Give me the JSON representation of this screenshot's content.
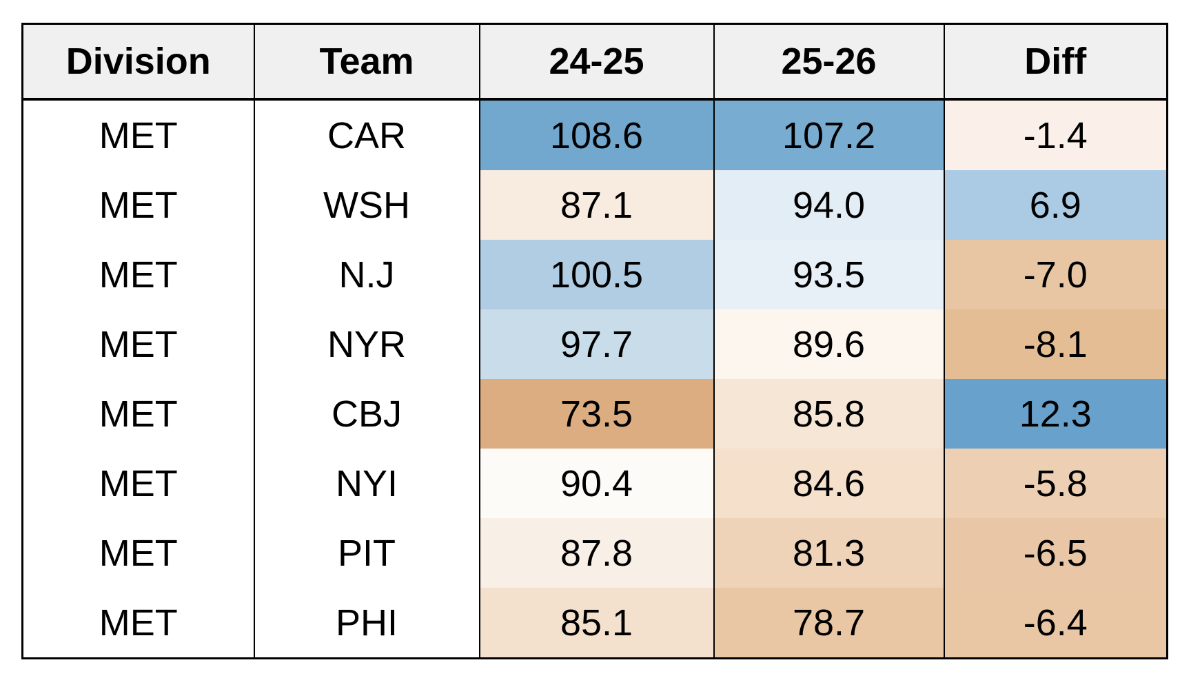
{
  "table": {
    "columns": [
      "Division",
      "Team",
      "24-25",
      "25-26",
      "Diff"
    ],
    "header_bg": "#f0f0f0",
    "border_color": "#000000",
    "rows": [
      {
        "division": "MET",
        "team": "CAR",
        "v2425": "108.6",
        "v2526": "107.2",
        "diff": "-1.4",
        "c2425": "#72a7ce",
        "c2526": "#79acd1",
        "cdiff": "#fbf0e9"
      },
      {
        "division": "MET",
        "team": "WSH",
        "v2425": "87.1",
        "v2526": "94.0",
        "diff": "6.9",
        "c2425": "#f8ebdf",
        "c2526": "#e2edf5",
        "cdiff": "#abcbe4"
      },
      {
        "division": "MET",
        "team": "N.J",
        "v2425": "100.5",
        "v2526": "93.5",
        "diff": "-7.0",
        "c2425": "#b0cde4",
        "c2526": "#e7f0f7",
        "cdiff": "#e8c6a4"
      },
      {
        "division": "MET",
        "team": "NYR",
        "v2425": "97.7",
        "v2526": "89.6",
        "diff": "-8.1",
        "c2425": "#c8dcea",
        "c2526": "#fdf6ef",
        "cdiff": "#e5bd95"
      },
      {
        "division": "MET",
        "team": "CBJ",
        "v2425": "73.5",
        "v2526": "85.8",
        "diff": "12.3",
        "c2425": "#dcad80",
        "c2526": "#f5e6d6",
        "cdiff": "#68a1cc"
      },
      {
        "division": "MET",
        "team": "NYI",
        "v2425": "90.4",
        "v2526": "84.6",
        "diff": "-5.8",
        "c2425": "#fdfbf8",
        "c2526": "#f4e0cb",
        "cdiff": "#edd0b3"
      },
      {
        "division": "MET",
        "team": "PIT",
        "v2425": "87.8",
        "v2526": "81.3",
        "diff": "-6.5",
        "c2425": "#f8efe7",
        "c2526": "#eed3b8",
        "cdiff": "#e9c7a6"
      },
      {
        "division": "MET",
        "team": "PHI",
        "v2425": "85.1",
        "v2526": "78.7",
        "diff": "-6.4",
        "c2425": "#f3e1cd",
        "c2526": "#eac7a4",
        "cdiff": "#e9c7a5"
      }
    ]
  },
  "chart_data": {
    "type": "heatmap",
    "title": "",
    "columns": [
      "Division",
      "Team",
      "24-25",
      "25-26",
      "Diff"
    ],
    "division": "MET",
    "categories": [
      "CAR",
      "WSH",
      "N.J",
      "NYR",
      "CBJ",
      "NYI",
      "PIT",
      "PHI"
    ],
    "series": [
      {
        "name": "24-25",
        "values": [
          108.6,
          87.1,
          100.5,
          97.7,
          73.5,
          90.4,
          87.8,
          85.1
        ]
      },
      {
        "name": "25-26",
        "values": [
          107.2,
          94.0,
          93.5,
          89.6,
          85.8,
          84.6,
          81.3,
          78.7
        ]
      },
      {
        "name": "Diff",
        "values": [
          -1.4,
          6.9,
          -7.0,
          -8.1,
          12.3,
          -5.8,
          -6.5,
          -6.4
        ]
      }
    ],
    "colormap": {
      "high_positive": "#68a1cc",
      "midpoint": "#ffffff",
      "low_negative": "#dcad80",
      "note": "diverging blue(high)-white-orange(low) fill on 24-25, 25-26 and Diff columns"
    },
    "grid": "black column dividers, thick black line under header, no row dividers",
    "legend": "none"
  }
}
